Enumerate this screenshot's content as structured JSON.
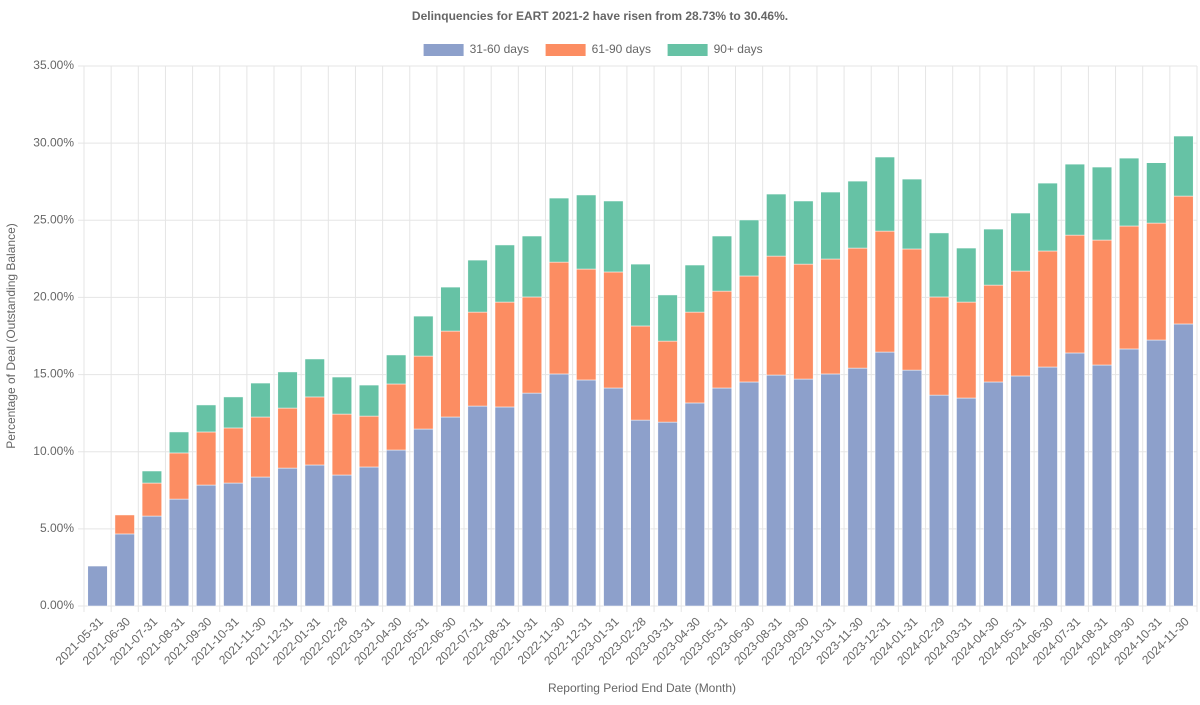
{
  "chart_data": {
    "type": "stacked_bar",
    "title": "Delinquencies for EART 2021-2 have risen from 28.73% to 30.46%.",
    "x_label": "Reporting Period End Date (Month)",
    "y_label": "Percentage of Deal (Outstanding Balance)",
    "categories": [
      "2021-05-31",
      "2021-06-30",
      "2021-07-31",
      "2021-08-31",
      "2021-09-30",
      "2021-10-31",
      "2021-11-30",
      "2021-12-31",
      "2022-01-31",
      "2022-02-28",
      "2022-03-31",
      "2022-04-30",
      "2022-05-31",
      "2022-06-30",
      "2022-07-31",
      "2022-08-31",
      "2022-10-31",
      "2022-11-30",
      "2022-12-31",
      "2023-01-31",
      "2023-02-28",
      "2023-03-31",
      "2023-04-30",
      "2023-05-31",
      "2023-06-30",
      "2023-08-31",
      "2023-09-30",
      "2023-10-31",
      "2023-11-30",
      "2023-12-31",
      "2024-01-31",
      "2024-02-29",
      "2024-03-31",
      "2024-04-30",
      "2024-05-31",
      "2024-06-30",
      "2024-07-31",
      "2024-08-31",
      "2024-09-30",
      "2024-10-31",
      "2024-11-30"
    ],
    "series": [
      {
        "name": "31-60 days",
        "color": "#8da0cb",
        "values": [
          2.59,
          4.67,
          5.83,
          6.93,
          7.84,
          7.97,
          8.36,
          8.94,
          9.14,
          8.49,
          9.01,
          10.11,
          11.47,
          12.25,
          12.96,
          12.9,
          13.8,
          15.04,
          14.65,
          14.13,
          12.05,
          11.92,
          13.16,
          14.13,
          14.52,
          14.97,
          14.71,
          15.04,
          15.42,
          16.46,
          15.29,
          13.67,
          13.48,
          14.52,
          14.91,
          15.49,
          16.4,
          15.62,
          16.66,
          17.24,
          18.28
        ]
      },
      {
        "name": "61-90 days",
        "color": "#fc8d62",
        "values": [
          0,
          1.23,
          2.14,
          2.99,
          3.44,
          3.57,
          3.89,
          3.89,
          4.41,
          3.95,
          3.3,
          4.28,
          4.73,
          5.57,
          6.09,
          6.8,
          6.23,
          7.25,
          7.19,
          7.52,
          6.1,
          5.25,
          5.89,
          6.28,
          6.87,
          7.71,
          7.45,
          7.45,
          7.78,
          7.84,
          7.85,
          6.36,
          6.22,
          6.28,
          6.8,
          7.52,
          7.64,
          8.1,
          7.97,
          7.58,
          8.29
        ]
      },
      {
        "name": "90+ days",
        "color": "#66c2a5",
        "values": [
          0,
          0,
          0.78,
          1.36,
          1.75,
          2.01,
          2.2,
          2.34,
          2.46,
          2.4,
          2.01,
          1.88,
          2.59,
          2.85,
          3.37,
          3.7,
          3.95,
          4.15,
          4.8,
          4.6,
          4.01,
          2.99,
          3.05,
          3.57,
          3.63,
          4.02,
          4.09,
          4.34,
          4.34,
          4.8,
          4.53,
          4.15,
          3.5,
          3.63,
          3.76,
          4.4,
          4.6,
          4.73,
          4.4,
          3.91,
          3.89
        ]
      }
    ],
    "ylim": [
      0,
      35
    ],
    "yticks": [
      {
        "value": 0,
        "label": "0.00%"
      },
      {
        "value": 5,
        "label": "5.00%"
      },
      {
        "value": 10,
        "label": "10.00%"
      },
      {
        "value": 15,
        "label": "15.00%"
      },
      {
        "value": 20,
        "label": "20.00%"
      },
      {
        "value": 25,
        "label": "25.00%"
      },
      {
        "value": 30,
        "label": "30.00%"
      },
      {
        "value": 35,
        "label": "35.00%"
      }
    ],
    "grid": true,
    "legend": "top"
  }
}
